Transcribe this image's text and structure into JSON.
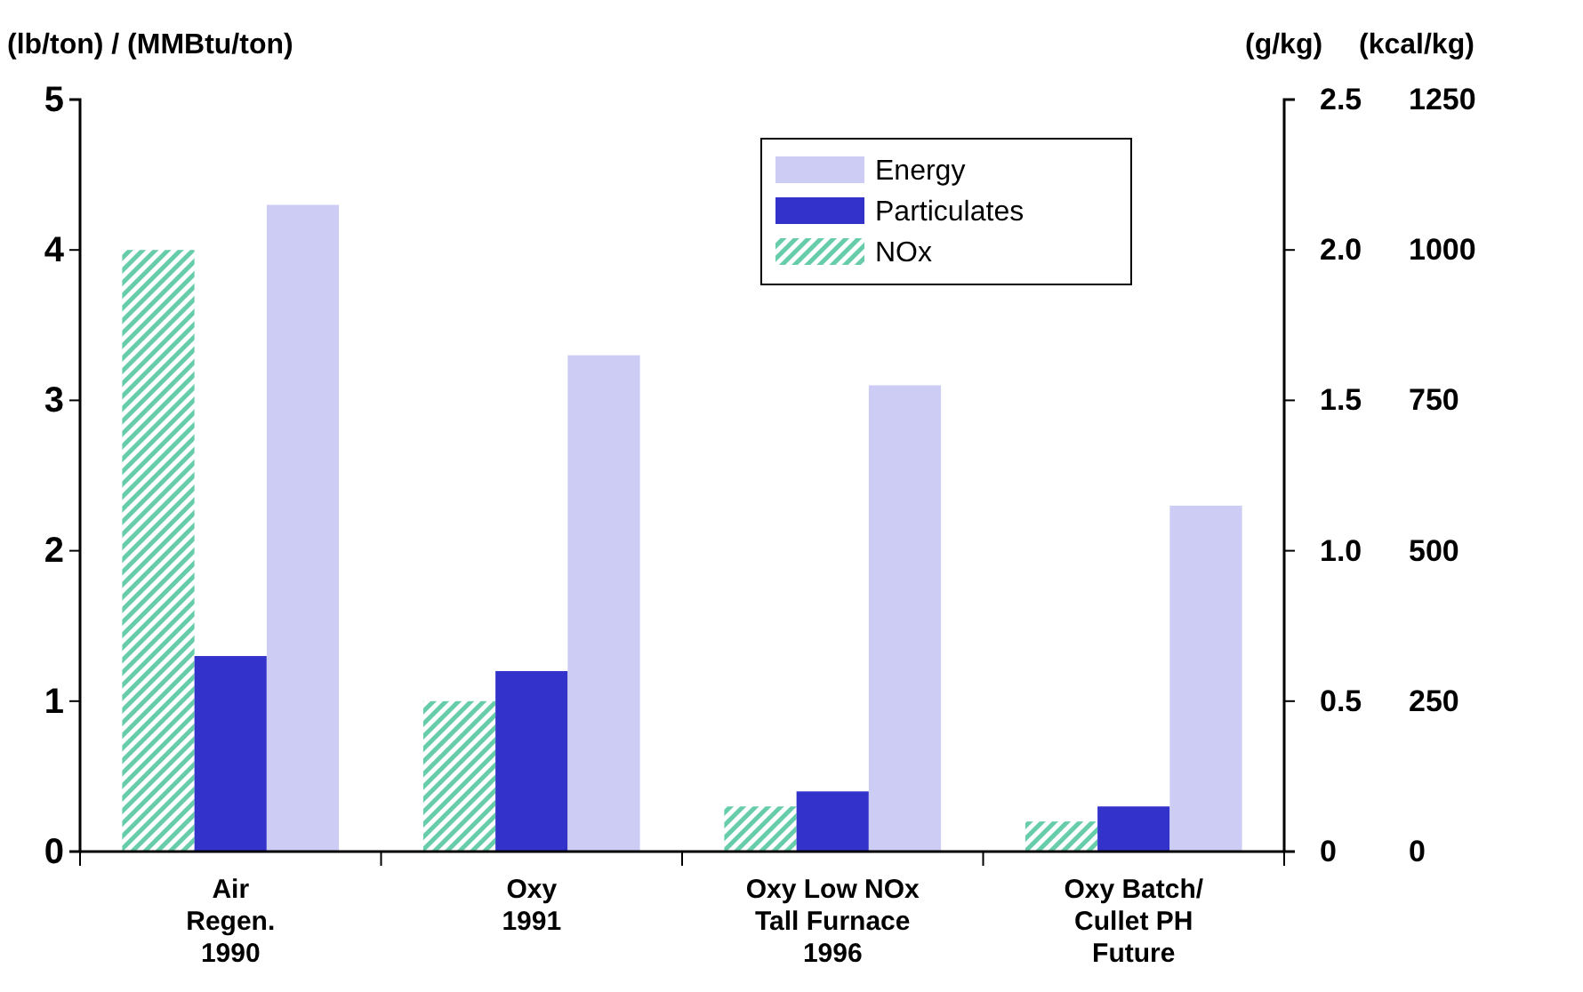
{
  "chart_data": {
    "type": "bar",
    "ylabel": "(lb/ton) / (MMBtu/ton)",
    "y2label": "(g/kg)",
    "y3label": "(kcal/kg)",
    "categories": [
      "Air\nRegen.\n1990",
      "Oxy\n1991",
      "Oxy Low NOx\nTall Furnace\n1996",
      "Oxy Batch/\nCullet PH\nFuture"
    ],
    "series": [
      {
        "name": "NOx",
        "color": "#66ccaa",
        "values": [
          4.0,
          1.0,
          0.3,
          0.2
        ]
      },
      {
        "name": "Particulates",
        "color": "#3333cc",
        "values": [
          1.3,
          1.2,
          0.4,
          0.3
        ]
      },
      {
        "name": "Energy",
        "color": "#ccccf5",
        "values": [
          4.3,
          3.3,
          3.1,
          2.3
        ]
      }
    ],
    "ylim": [
      0,
      5
    ],
    "yticks": [
      0,
      1,
      2,
      3,
      4,
      5
    ],
    "y2lim": [
      0,
      2.5
    ],
    "y2ticks": [
      0,
      {
        "value": 0.5,
        "label": "0.5"
      },
      {
        "value": 1,
        "label": "1.0"
      },
      {
        "value": 1.5,
        "label": "1.5"
      },
      {
        "value": 2,
        "label": "2.0"
      },
      {
        "value": 2.5,
        "label": "2.5"
      }
    ],
    "y3lim": [
      0,
      1250
    ],
    "y3ticks": [
      0,
      250,
      500,
      750,
      1000,
      1250
    ],
    "legend": "top right",
    "grid": false
  }
}
